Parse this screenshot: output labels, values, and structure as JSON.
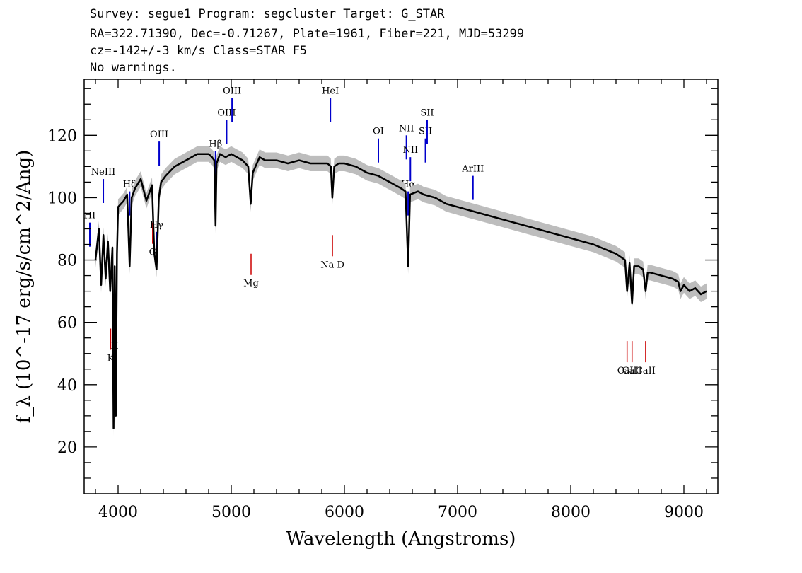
{
  "header": {
    "line1": "Survey: segue1 Program: segcluster Target: G_STAR",
    "line2": "RA=322.71390, Dec=-0.71267, Plate=1961, Fiber=221, MJD=53299",
    "line3": "cz=-142+/-3 km/s Class=STAR F5",
    "line4": "No warnings."
  },
  "colors": {
    "flux": "#000000",
    "error_band": "#bdbdbd",
    "emission": "#0000cc",
    "absorption": "#cc0000"
  },
  "chart_data": {
    "type": "line",
    "title": "",
    "xlabel": "Wavelength (Angstroms)",
    "ylabel": "f_λ (10^-17 erg/s/cm^2/Ang)",
    "xlim": [
      3700,
      9300
    ],
    "ylim": [
      5,
      138
    ],
    "x_ticks": [
      4000,
      5000,
      6000,
      7000,
      8000,
      9000
    ],
    "y_ticks": [
      20,
      40,
      60,
      80,
      100,
      120
    ],
    "series": [
      {
        "x": [
          3800,
          3830,
          3850,
          3870,
          3890,
          3910,
          3930,
          3950,
          3960,
          3970,
          3980,
          3990,
          4000,
          4050,
          4080,
          4102,
          4120,
          4150,
          4200,
          4250,
          4300,
          4320,
          4340,
          4360,
          4380,
          4420,
          4500,
          4600,
          4700,
          4800,
          4830,
          4850,
          4861,
          4870,
          4900,
          4950,
          5000,
          5100,
          5150,
          5172,
          5190,
          5250,
          5300,
          5400,
          5500,
          5600,
          5700,
          5800,
          5850,
          5880,
          5893,
          5910,
          5950,
          6000,
          6100,
          6200,
          6300,
          6400,
          6500,
          6540,
          6563,
          6580,
          6650,
          6700,
          6800,
          6900,
          7000,
          7200,
          7400,
          7600,
          7800,
          8000,
          8200,
          8400,
          8480,
          8498,
          8520,
          8542,
          8560,
          8600,
          8640,
          8662,
          8680,
          8700,
          8800,
          8900,
          8950,
          8970,
          9000,
          9050,
          9100,
          9150,
          9200
        ],
        "y": [
          80,
          90,
          72,
          88,
          74,
          86,
          70,
          84,
          26,
          78,
          30,
          82,
          97,
          99,
          101,
          78,
          100,
          103,
          106,
          99,
          104,
          82,
          77,
          100,
          105,
          107,
          110,
          112,
          114,
          114,
          113,
          112,
          91,
          111,
          114,
          113,
          114,
          112,
          110,
          98,
          108,
          113,
          112,
          112,
          111,
          112,
          111,
          111,
          111,
          110,
          100,
          110,
          111,
          111,
          110,
          108,
          107,
          105,
          103,
          102,
          78,
          101,
          102,
          101,
          100,
          98,
          97,
          95,
          93,
          91,
          89,
          87,
          85,
          82,
          80,
          70,
          79,
          66,
          78,
          78,
          77,
          70,
          76,
          76,
          75,
          74,
          73,
          70,
          72,
          70,
          71,
          69,
          70
        ]
      }
    ],
    "emission_lines": [
      {
        "label": "HI",
        "x": 3750
      },
      {
        "label": "NeIII",
        "x": 3869
      },
      {
        "label": "Hδ",
        "x": 4102
      },
      {
        "label": "Hγ",
        "x": 4340
      },
      {
        "label": "OIII",
        "x": 4363
      },
      {
        "label": "Hβ",
        "x": 4861
      },
      {
        "label": "OIII",
        "x": 4959
      },
      {
        "label": "OIII",
        "x": 5007
      },
      {
        "label": "HeI",
        "x": 5876
      },
      {
        "label": "OI",
        "x": 6300
      },
      {
        "label": "NII",
        "x": 6548
      },
      {
        "label": "Hα",
        "x": 6563
      },
      {
        "label": "NII",
        "x": 6583
      },
      {
        "label": "SII",
        "x": 6716
      },
      {
        "label": "SII",
        "x": 6731
      },
      {
        "label": "ArIII",
        "x": 7136
      }
    ],
    "absorption_lines": [
      {
        "label": "K",
        "x": 3934
      },
      {
        "label": "H",
        "x": 3969
      },
      {
        "label": "G",
        "x": 4305
      },
      {
        "label": "Mg",
        "x": 5175
      },
      {
        "label": "Na D",
        "x": 5894
      },
      {
        "label": "CaII",
        "x": 8498
      },
      {
        "label": "CaII",
        "x": 8542
      },
      {
        "label": "CaII",
        "x": 8662
      }
    ]
  }
}
